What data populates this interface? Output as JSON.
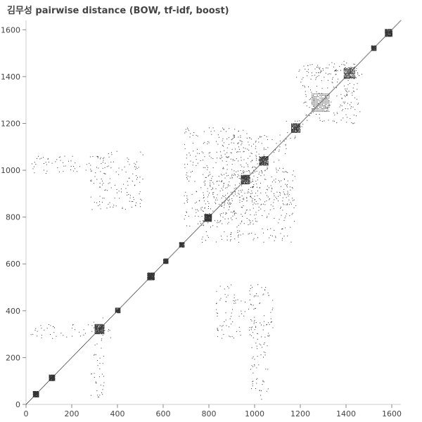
{
  "chart_data": {
    "type": "heatmap",
    "title": "김무성 pairwise distance (BOW, tf-idf, boost)",
    "xlabel": "",
    "ylabel": "",
    "xlim": [
      0,
      1640
    ],
    "ylim": [
      0,
      1640
    ],
    "x_ticks": [
      0,
      200,
      400,
      600,
      800,
      1000,
      1200,
      1400,
      1600
    ],
    "y_ticks": [
      0,
      200,
      400,
      600,
      800,
      1000,
      1200,
      1400,
      1600
    ],
    "grid": false,
    "mark_color": "#333333",
    "diagonal": [
      0,
      1640
    ],
    "dense_blocks": [
      {
        "start": 30,
        "end": 55
      },
      {
        "start": 100,
        "end": 125
      },
      {
        "start": 300,
        "end": 340
      },
      {
        "start": 390,
        "end": 410
      },
      {
        "start": 530,
        "end": 560
      },
      {
        "start": 600,
        "end": 620
      },
      {
        "start": 670,
        "end": 690
      },
      {
        "start": 780,
        "end": 810
      },
      {
        "start": 940,
        "end": 980
      },
      {
        "start": 1020,
        "end": 1060
      },
      {
        "start": 1160,
        "end": 1200
      },
      {
        "start": 1250,
        "end": 1330
      },
      {
        "start": 1390,
        "end": 1440
      },
      {
        "start": 1510,
        "end": 1530
      },
      {
        "start": 1570,
        "end": 1600
      }
    ],
    "scatter_regions": [
      {
        "x": [
          850,
          1150
        ],
        "y": [
          850,
          1150
        ]
      },
      {
        "x": [
          1200,
          1460
        ],
        "y": [
          1200,
          1460
        ]
      },
      {
        "x": [
          1130,
          1210
        ],
        "y": [
          1130,
          1210
        ]
      },
      {
        "x": [
          20,
          370
        ],
        "y": [
          280,
          340
        ]
      },
      {
        "x": [
          280,
          340
        ],
        "y": [
          20,
          370
        ]
      },
      {
        "x": [
          20,
          370
        ],
        "y": [
          980,
          1060
        ]
      },
      {
        "x": [
          980,
          1060
        ],
        "y": [
          20,
          370
        ]
      },
      {
        "x": [
          830,
          1080
        ],
        "y": [
          280,
          510
        ]
      },
      {
        "x": [
          280,
          510
        ],
        "y": [
          830,
          1080
        ]
      },
      {
        "x": [
          760,
          1180
        ],
        "y": [
          690,
          1010
        ]
      },
      {
        "x": [
          690,
          1010
        ],
        "y": [
          760,
          1180
        ]
      },
      {
        "x": [
          1180,
          1470
        ],
        "y": [
          1380,
          1440
        ]
      },
      {
        "x": [
          1380,
          1440
        ],
        "y": [
          1180,
          1470
        ]
      }
    ]
  }
}
